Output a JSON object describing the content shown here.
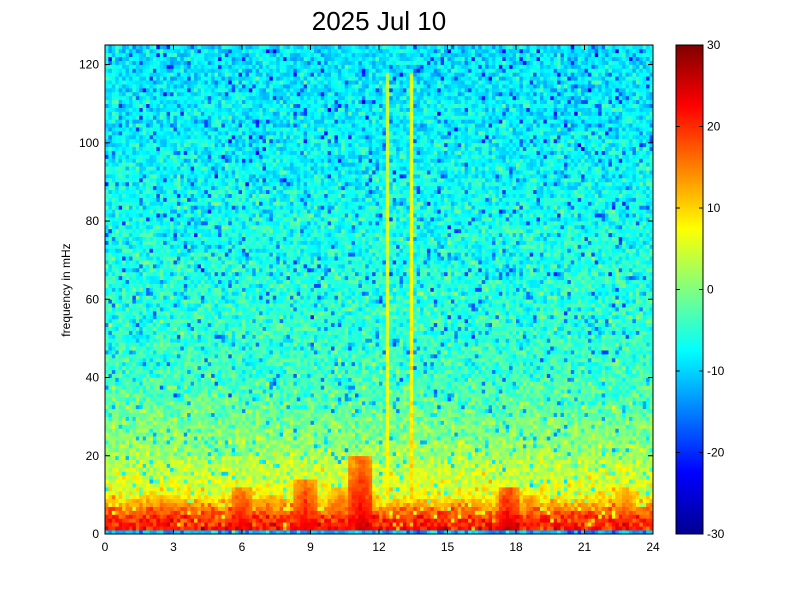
{
  "chart_data": {
    "type": "heatmap",
    "title": "2025 Jul 10",
    "xlabel": "",
    "ylabel": "frequency in mHz",
    "xlim": [
      0,
      24
    ],
    "ylim": [
      0,
      125
    ],
    "x_ticks": [
      0,
      3,
      6,
      9,
      12,
      15,
      18,
      21,
      24
    ],
    "y_ticks": [
      0,
      20,
      40,
      60,
      80,
      100,
      120
    ],
    "colorbar": {
      "range": [
        -30,
        30
      ],
      "ticks": [
        -30,
        -20,
        -10,
        0,
        10,
        20,
        30
      ],
      "colormap": "jet"
    },
    "background_level": -8,
    "low_frequency_power": [
      {
        "f": 2,
        "level": 22
      },
      {
        "f": 5,
        "level": 18
      },
      {
        "f": 10,
        "level": 7
      },
      {
        "f": 20,
        "level": 2
      },
      {
        "f": 40,
        "level": -4
      },
      {
        "f": 125,
        "level": -9
      }
    ],
    "hotspots": [
      {
        "hour": 2.5,
        "f_max": 10,
        "level": 22
      },
      {
        "hour": 6.0,
        "f_max": 12,
        "level": 25
      },
      {
        "hour": 7.2,
        "f_max": 10,
        "level": 22
      },
      {
        "hour": 8.8,
        "f_max": 14,
        "level": 25
      },
      {
        "hour": 10.3,
        "f_max": 12,
        "level": 22
      },
      {
        "hour": 11.2,
        "f_max": 20,
        "level": 26
      },
      {
        "hour": 17.7,
        "f_max": 12,
        "level": 27
      },
      {
        "hour": 18.6,
        "f_max": 10,
        "level": 22
      },
      {
        "hour": 22.8,
        "f_max": 12,
        "level": 22
      }
    ],
    "vertical_streaks": [
      {
        "hour": 12.4,
        "level": 8
      },
      {
        "hour": 13.4,
        "level": 10
      }
    ]
  }
}
